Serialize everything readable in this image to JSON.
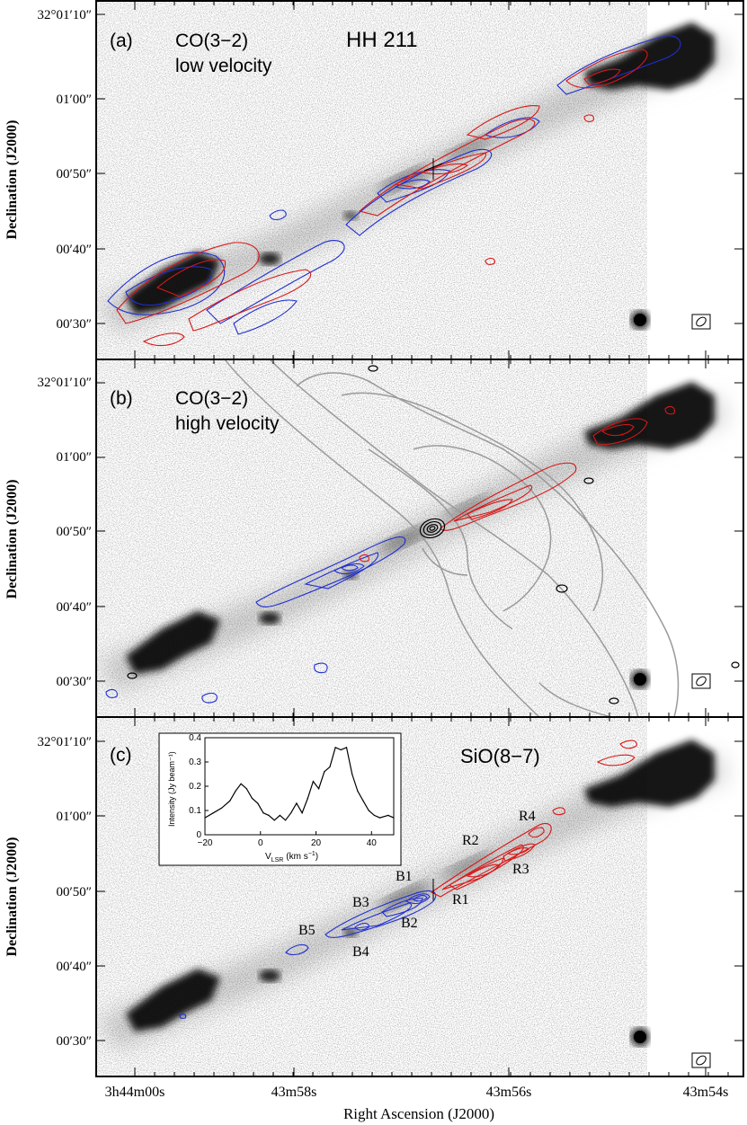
{
  "figure": {
    "y_axis_label": "Declination (J2000)",
    "x_axis_label": "Right Ascension (J2000)",
    "x_ticks": [
      "3h44m00s",
      "43m58s",
      "43m56s",
      "43m54s"
    ],
    "y_ticks": [
      "32°01′10″",
      "01′00″",
      "00′50″",
      "00′40″",
      "00′30″"
    ]
  },
  "panels": [
    {
      "id": "a",
      "tag": "(a)",
      "title_line1": "CO(3−2)",
      "title_line2": "low velocity",
      "object": "HH 211"
    },
    {
      "id": "b",
      "tag": "(b)",
      "title_line1": "CO(3−2)",
      "title_line2": "high velocity"
    },
    {
      "id": "c",
      "tag": "(c)",
      "title_line1": "SiO(8−7)",
      "knots_blue": [
        "B1",
        "B2",
        "B3",
        "B4",
        "B5"
      ],
      "knots_red": [
        "R1",
        "R2",
        "R3",
        "R4"
      ]
    }
  ],
  "chart_data": {
    "type": "line",
    "title": "",
    "xlabel": "V_LSR (km s^-1)",
    "ylabel": "Intensity (Jy beam^-1)",
    "xlim": [
      -20,
      48
    ],
    "ylim": [
      0,
      0.4
    ],
    "x_ticks": [
      -20,
      0,
      20,
      40
    ],
    "y_ticks": [
      0,
      0.1,
      0.2,
      0.3,
      0.4
    ],
    "x_tick_labels": [
      "−20",
      "0",
      "20",
      "40"
    ],
    "y_tick_labels": [
      "0",
      "0.1",
      "0.2",
      "0.3",
      "0.4"
    ],
    "xlabel_main": "V",
    "xlabel_sub": "LSR",
    "xlabel_units": "(km s",
    "xlabel_exp": "−1",
    "xlabel_close": ")",
    "ylabel_text": "Intensity (Jy beam⁻¹)",
    "series": [
      {
        "name": "SiO(8-7) spectrum",
        "x": [
          -20,
          -17,
          -14,
          -11,
          -9,
          -7,
          -5,
          -3,
          -1,
          1,
          3,
          5,
          7,
          9,
          11,
          13,
          15,
          17,
          19,
          21,
          23,
          25,
          27,
          29,
          31,
          33,
          35,
          37,
          39,
          41,
          43,
          46,
          48
        ],
        "y": [
          0.07,
          0.09,
          0.11,
          0.14,
          0.18,
          0.21,
          0.19,
          0.15,
          0.13,
          0.09,
          0.08,
          0.06,
          0.08,
          0.06,
          0.09,
          0.13,
          0.09,
          0.15,
          0.22,
          0.19,
          0.26,
          0.28,
          0.36,
          0.35,
          0.36,
          0.25,
          0.18,
          0.14,
          0.1,
          0.08,
          0.07,
          0.08,
          0.07
        ]
      }
    ]
  }
}
